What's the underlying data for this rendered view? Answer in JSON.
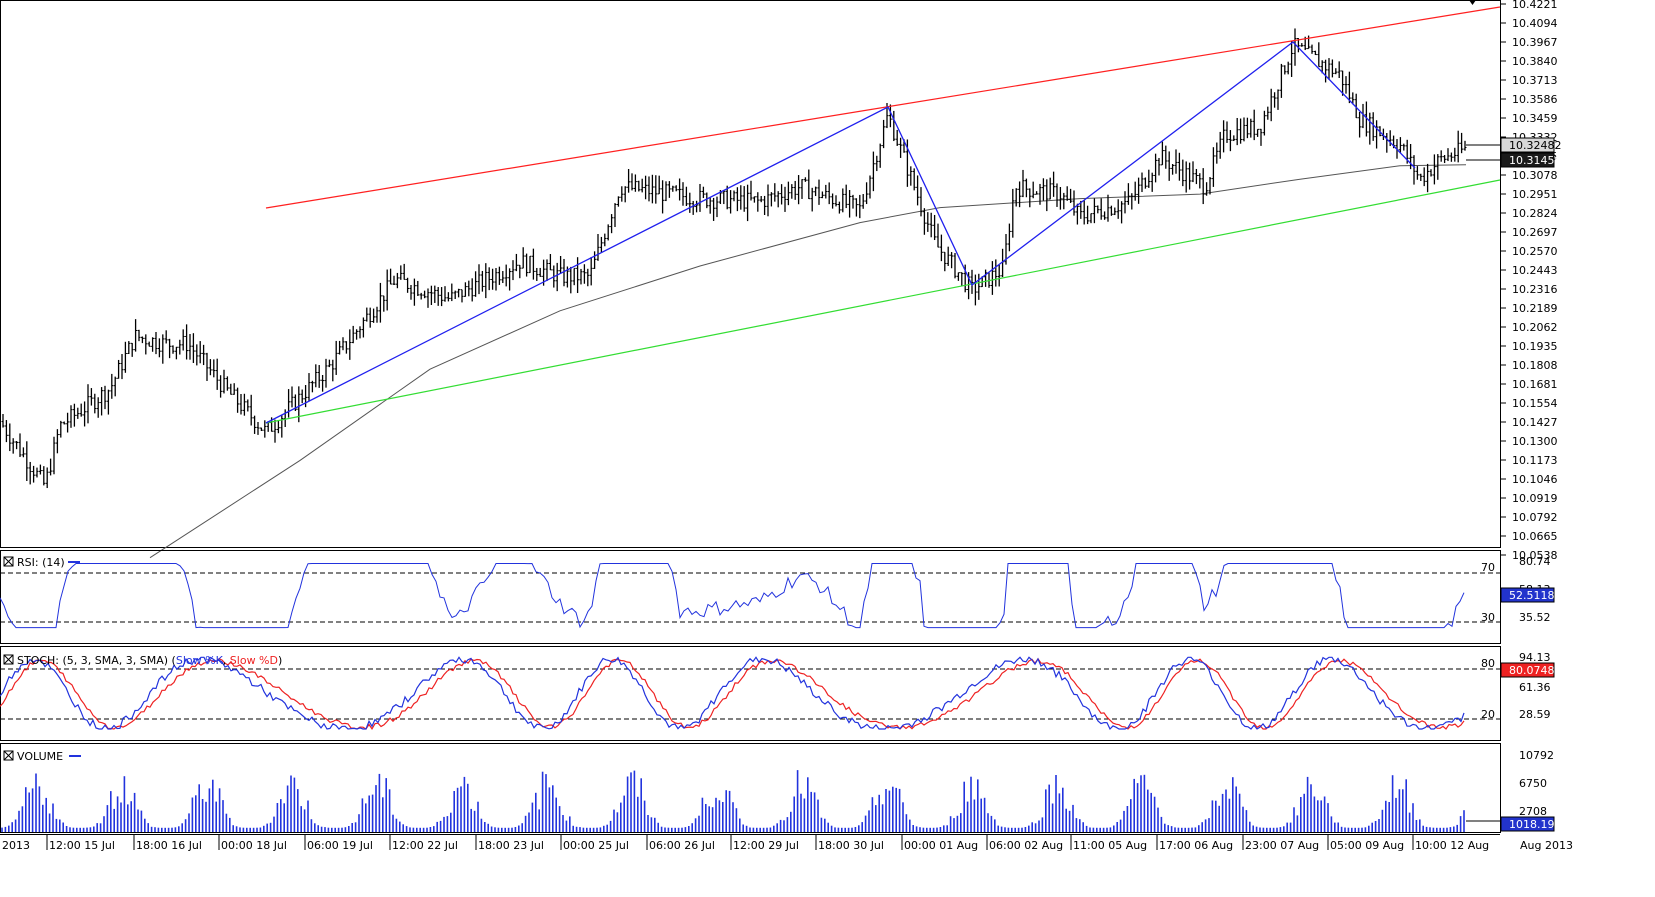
{
  "colors": {
    "candle": "#000000",
    "sma": "#555555",
    "resistance": "#ff2020",
    "support": "#33dd33",
    "pattern": "#2020ee",
    "rsi": "#2233dd",
    "stoch_k": "#2233dd",
    "stoch_d": "#ee2222",
    "volume": "#2233dd",
    "grid": "#000000",
    "background": "#ffffff"
  },
  "icons": {
    "panel_close": "close-box-icon",
    "legend_swatch": "line-swatch-icon",
    "top_marker": "diamond-icon"
  },
  "price_axis": {
    "ticks": [
      "10.4221",
      "10.4094",
      "10.3967",
      "10.3840",
      "10.3713",
      "10.3586",
      "10.3459",
      "10.3332",
      "10.3205",
      "10.3078",
      "10.2951",
      "10.2824",
      "10.2697",
      "10.2570",
      "10.2443",
      "10.2316",
      "10.2189",
      "10.2062",
      "10.1935",
      "10.1808",
      "10.1681",
      "10.1554",
      "10.1427",
      "10.1300",
      "10.1173",
      "10.1046",
      "10.0919",
      "10.0792",
      "10.0665",
      "10.0538"
    ],
    "bid_label": "10.32482",
    "sma_label": "10.31459"
  },
  "time_axis": {
    "labels": [
      "2013",
      "12:00 15 Jul",
      "18:00 16 Jul",
      "00:00 18 Jul",
      "06:00 19 Jul",
      "12:00 22 Jul",
      "18:00 23 Jul",
      "00:00 25 Jul",
      "06:00 26 Jul",
      "12:00 29 Jul",
      "18:00 30 Jul",
      "00:00 01 Aug",
      "06:00 02 Aug",
      "11:00 05 Aug",
      "17:00 06 Aug",
      "23:00 07 Aug",
      "05:00 09 Aug",
      "10:00 12 Aug",
      "Aug 2013"
    ]
  },
  "rsi_panel": {
    "title": "RSI: (14)",
    "levels": {
      "upper": "70",
      "lower": "30"
    },
    "axis": [
      "80.74",
      "58.13",
      "35.52"
    ],
    "current": "52.51188"
  },
  "stoch_panel": {
    "title": "STOCH: (5, 3, SMA, 3, SMA)",
    "k_label": "Slow %K",
    "d_label": "Slow %D",
    "levels": {
      "upper": "80",
      "lower": "20"
    },
    "axis": [
      "94.13",
      "61.36",
      "28.59"
    ],
    "current": "80.07483"
  },
  "volume_panel": {
    "title": "VOLUME",
    "axis": [
      "10792",
      "6750",
      "2708"
    ],
    "current": "1018.19"
  },
  "chart_data": {
    "type": "candlestick",
    "title": "",
    "y_range": [
      10.0538,
      10.4221
    ],
    "pivots": [
      {
        "x": "00:00 18 Jul",
        "price": 10.136
      },
      {
        "x": "18:00 30 Jul",
        "price": 10.348
      },
      {
        "x": "00:00 01 Aug",
        "price": 10.231
      },
      {
        "x": "23:00 07 Aug",
        "price": 10.394
      },
      {
        "x": "10:00 12 Aug",
        "price": 10.325
      }
    ],
    "resistance_line": [
      10.2836,
      10.4208
    ],
    "support_line": [
      10.136,
      10.2985
    ],
    "last_price": 10.32482,
    "sma_last": 10.31459
  }
}
